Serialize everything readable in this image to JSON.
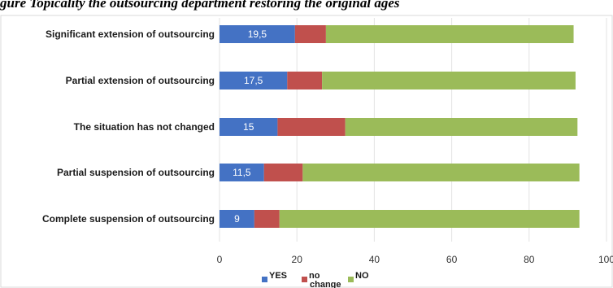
{
  "caption": "gure  Topicality   the  outsourcing  department  restoring  the  original  ages",
  "chart_data": {
    "type": "bar",
    "orientation": "horizontal",
    "stacked": true,
    "categories": [
      "Significant extension of outsourcing",
      "Partial extension of outsourcing",
      "The situation has not changed",
      "Partial suspension of outsourcing",
      "Complete suspension of outsourcing"
    ],
    "series": [
      {
        "name": "YES",
        "color": "#4472C4",
        "values": [
          19.5,
          17.5,
          15,
          11.5,
          9
        ]
      },
      {
        "name": "no change",
        "color": "#C0504D",
        "values": [
          8,
          9,
          17.5,
          10,
          6.5
        ]
      },
      {
        "name": "NO",
        "color": "#9BBB59",
        "values": [
          64,
          65.5,
          60,
          71.5,
          77.5
        ]
      }
    ],
    "data_labels": [
      "19,5",
      "17,5",
      "15",
      "11,5",
      "9"
    ],
    "xlim": [
      0,
      100
    ],
    "xticks": [
      "0",
      "20",
      "40",
      "60",
      "80",
      "100"
    ],
    "grid": true,
    "legend_position": "bottom"
  }
}
